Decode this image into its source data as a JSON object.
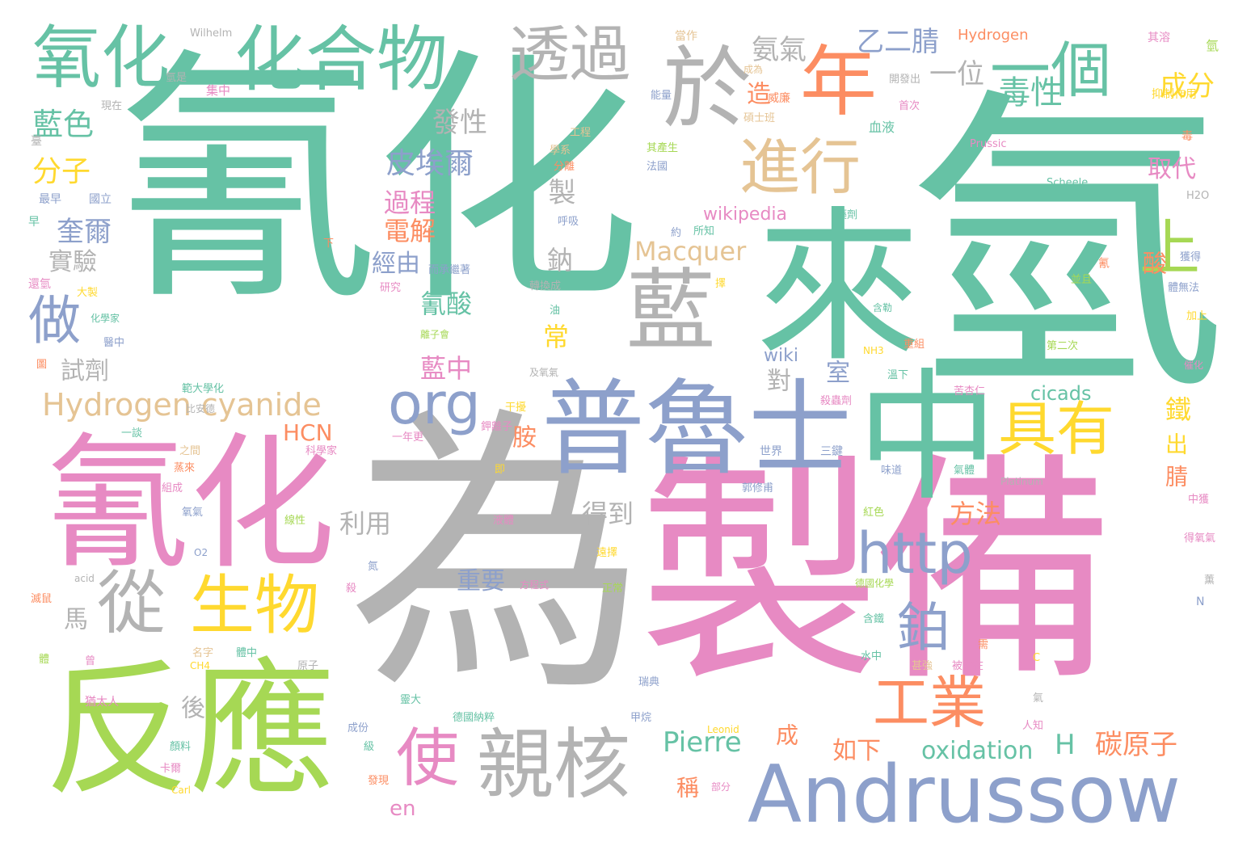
{
  "palette": {
    "green": "#66c2a5",
    "orange": "#fc8d62",
    "blue": "#8da0cb",
    "pink": "#e78ac3",
    "lime": "#a6d854",
    "yellow": "#ffd92f",
    "tan": "#e5c494",
    "gray": "#b3b3b3"
  },
  "words": [
    {
      "t": "氰化",
      "c": "green"
    },
    {
      "t": "氫",
      "c": "green"
    },
    {
      "t": "為",
      "c": "gray"
    },
    {
      "t": "製備",
      "c": "pink"
    },
    {
      "t": "氰化",
      "c": "pink"
    },
    {
      "t": "反應",
      "c": "lime"
    },
    {
      "t": "來",
      "c": "green"
    },
    {
      "t": "中",
      "c": "green"
    },
    {
      "t": "普魯士",
      "c": "blue"
    },
    {
      "t": "Andrussow",
      "c": "blue"
    },
    {
      "t": "氧化",
      "c": "green"
    },
    {
      "t": "化合物",
      "c": "green"
    },
    {
      "t": "於",
      "c": "gray"
    },
    {
      "t": "藍",
      "c": "gray"
    },
    {
      "t": "年",
      "c": "orange"
    },
    {
      "t": "一個",
      "c": "green"
    },
    {
      "t": "透過",
      "c": "gray"
    },
    {
      "t": "進行",
      "c": "tan"
    },
    {
      "t": "親核",
      "c": "gray"
    },
    {
      "t": "從",
      "c": "gray"
    },
    {
      "t": "生物",
      "c": "yellow"
    },
    {
      "t": "org",
      "c": "blue"
    },
    {
      "t": "具有",
      "c": "yellow"
    },
    {
      "t": "http",
      "c": "blue"
    },
    {
      "t": "工業",
      "c": "orange"
    },
    {
      "t": "使",
      "c": "pink"
    },
    {
      "t": "做",
      "c": "blue"
    },
    {
      "t": "鉑",
      "c": "blue"
    },
    {
      "t": "Hydrogen cyanide",
      "c": "tan"
    },
    {
      "t": "藍色",
      "c": "green"
    },
    {
      "t": "分子",
      "c": "yellow"
    },
    {
      "t": "上",
      "c": "lime"
    },
    {
      "t": "毒性",
      "c": "green"
    },
    {
      "t": "乙二腈",
      "c": "blue"
    },
    {
      "t": "一位",
      "c": "gray"
    },
    {
      "t": "氨氣",
      "c": "gray"
    },
    {
      "t": "發性",
      "c": "gray"
    },
    {
      "t": "皮埃爾",
      "c": "blue"
    },
    {
      "t": "成分",
      "c": "yellow"
    },
    {
      "t": "過程",
      "c": "pink"
    },
    {
      "t": "電解",
      "c": "orange"
    },
    {
      "t": "奎爾",
      "c": "blue"
    },
    {
      "t": "實驗",
      "c": "gray"
    },
    {
      "t": "經由",
      "c": "blue"
    },
    {
      "t": "氰酸",
      "c": "green"
    },
    {
      "t": "Macquer",
      "c": "tan"
    },
    {
      "t": "藍中",
      "c": "pink"
    },
    {
      "t": "試劑",
      "c": "gray"
    },
    {
      "t": "HCN",
      "c": "orange"
    },
    {
      "t": "Pierre",
      "c": "green"
    },
    {
      "t": "oxidation",
      "c": "green"
    },
    {
      "t": "碳原子",
      "c": "orange"
    },
    {
      "t": "cicads",
      "c": "green"
    },
    {
      "t": "得到",
      "c": "gray"
    },
    {
      "t": "方法",
      "c": "orange"
    },
    {
      "t": "利用",
      "c": "gray"
    },
    {
      "t": "重要",
      "c": "blue"
    },
    {
      "t": "如下",
      "c": "orange"
    },
    {
      "t": "wikipedia",
      "c": "pink"
    },
    {
      "t": "wiki",
      "c": "blue"
    },
    {
      "t": "取代",
      "c": "pink"
    },
    {
      "t": "Hydrogen",
      "c": "orange"
    },
    {
      "t": "製",
      "c": "gray"
    },
    {
      "t": "鈉",
      "c": "gray"
    },
    {
      "t": "常",
      "c": "yellow"
    },
    {
      "t": "造",
      "c": "orange"
    },
    {
      "t": "室",
      "c": "blue"
    },
    {
      "t": "對",
      "c": "gray"
    },
    {
      "t": "鐵",
      "c": "yellow"
    },
    {
      "t": "出",
      "c": "yellow"
    },
    {
      "t": "腈",
      "c": "orange"
    },
    {
      "t": "胺",
      "c": "orange"
    },
    {
      "t": "酸",
      "c": "orange"
    },
    {
      "t": "馬",
      "c": "gray"
    },
    {
      "t": "後",
      "c": "gray"
    },
    {
      "t": "成",
      "c": "orange"
    },
    {
      "t": "稱",
      "c": "orange"
    },
    {
      "t": "H",
      "c": "green"
    },
    {
      "t": "en",
      "c": "pink"
    },
    {
      "t": "Wilhelm",
      "c": "gray"
    },
    {
      "t": "當作",
      "c": "tan"
    },
    {
      "t": "其溶",
      "c": "pink"
    },
    {
      "t": "氫",
      "c": "lime"
    },
    {
      "t": "成為",
      "c": "tan"
    },
    {
      "t": "氫是",
      "c": "gray"
    },
    {
      "t": "集中",
      "c": "pink"
    },
    {
      "t": "開發出",
      "c": "gray"
    },
    {
      "t": "能量",
      "c": "blue"
    },
    {
      "t": "威廉",
      "c": "orange"
    },
    {
      "t": "首次",
      "c": "pink"
    },
    {
      "t": "抑制作用",
      "c": "yellow"
    },
    {
      "t": "現在",
      "c": "gray"
    },
    {
      "t": "碩士班",
      "c": "tan"
    },
    {
      "t": "血液",
      "c": "green"
    },
    {
      "t": "臺",
      "c": "gray"
    },
    {
      "t": "工程",
      "c": "tan"
    },
    {
      "t": "學系",
      "c": "tan"
    },
    {
      "t": "其產生",
      "c": "lime"
    },
    {
      "t": "Prussic",
      "c": "pink"
    },
    {
      "t": "毒",
      "c": "orange"
    },
    {
      "t": "分離",
      "c": "orange"
    },
    {
      "t": "法國",
      "c": "blue"
    },
    {
      "t": "Scheele",
      "c": "green"
    },
    {
      "t": "最早",
      "c": "blue"
    },
    {
      "t": "國立",
      "c": "blue"
    },
    {
      "t": "H2O",
      "c": "gray"
    },
    {
      "t": "早",
      "c": "green"
    },
    {
      "t": "呼吸",
      "c": "blue"
    },
    {
      "t": "藥劑",
      "c": "green"
    },
    {
      "t": "下",
      "c": "orange"
    },
    {
      "t": "約",
      "c": "blue"
    },
    {
      "t": "所知",
      "c": "green"
    },
    {
      "t": "獲得",
      "c": "blue"
    },
    {
      "t": "而承繼著",
      "c": "blue"
    },
    {
      "t": "氰",
      "c": "orange"
    },
    {
      "t": "還氫",
      "c": "pink"
    },
    {
      "t": "大製",
      "c": "yellow"
    },
    {
      "t": "研究",
      "c": "pink"
    },
    {
      "t": "轉換成",
      "c": "gray"
    },
    {
      "t": "擇",
      "c": "yellow"
    },
    {
      "t": "並且",
      "c": "lime"
    },
    {
      "t": "體無法",
      "c": "blue"
    },
    {
      "t": "化學家",
      "c": "green"
    },
    {
      "t": "油",
      "c": "green"
    },
    {
      "t": "含勒",
      "c": "green"
    },
    {
      "t": "加上",
      "c": "yellow"
    },
    {
      "t": "醫中",
      "c": "blue"
    },
    {
      "t": "離子會",
      "c": "lime"
    },
    {
      "t": "圖",
      "c": "orange"
    },
    {
      "t": "及氧氣",
      "c": "gray"
    },
    {
      "t": "NH3",
      "c": "yellow"
    },
    {
      "t": "重組",
      "c": "orange"
    },
    {
      "t": "第二次",
      "c": "lime"
    },
    {
      "t": "催化",
      "c": "pink"
    },
    {
      "t": "範大學化",
      "c": "green"
    },
    {
      "t": "溫下",
      "c": "green"
    },
    {
      "t": "苦杏仁",
      "c": "pink"
    },
    {
      "t": "比安德",
      "c": "gray"
    },
    {
      "t": "干擾",
      "c": "yellow"
    },
    {
      "t": "殺蟲劑",
      "c": "pink"
    },
    {
      "t": "一談",
      "c": "green"
    },
    {
      "t": "鉀離子",
      "c": "pink"
    },
    {
      "t": "一年更",
      "c": "pink"
    },
    {
      "t": "之間",
      "c": "tan"
    },
    {
      "t": "世界",
      "c": "blue"
    },
    {
      "t": "三鍵",
      "c": "blue"
    },
    {
      "t": "科學家",
      "c": "pink"
    },
    {
      "t": "蒸來",
      "c": "orange"
    },
    {
      "t": "即",
      "c": "yellow"
    },
    {
      "t": "味道",
      "c": "blue"
    },
    {
      "t": "氣體",
      "c": "green"
    },
    {
      "t": "組成",
      "c": "pink"
    },
    {
      "t": "郭修甫",
      "c": "blue"
    },
    {
      "t": "Platinum",
      "c": "gray"
    },
    {
      "t": "紅色",
      "c": "lime"
    },
    {
      "t": "中獲",
      "c": "pink"
    },
    {
      "t": "氧氣",
      "c": "blue"
    },
    {
      "t": "線性",
      "c": "lime"
    },
    {
      "t": "液體",
      "c": "pink"
    },
    {
      "t": "得氧氣",
      "c": "pink"
    },
    {
      "t": "O2",
      "c": "blue"
    },
    {
      "t": "遠擇",
      "c": "yellow"
    },
    {
      "t": "acid",
      "c": "gray"
    },
    {
      "t": "氮",
      "c": "blue"
    },
    {
      "t": "方程式",
      "c": "pink"
    },
    {
      "t": "正常",
      "c": "lime"
    },
    {
      "t": "德國化學",
      "c": "lime"
    },
    {
      "t": "薰",
      "c": "gray"
    },
    {
      "t": "滅鼠",
      "c": "orange"
    },
    {
      "t": "殺",
      "c": "pink"
    },
    {
      "t": "含鐵",
      "c": "green"
    },
    {
      "t": "N",
      "c": "blue"
    },
    {
      "t": "名字",
      "c": "tan"
    },
    {
      "t": "曾",
      "c": "pink"
    },
    {
      "t": "體中",
      "c": "green"
    },
    {
      "t": "原子",
      "c": "gray"
    },
    {
      "t": "水中",
      "c": "green"
    },
    {
      "t": "需",
      "c": "orange"
    },
    {
      "t": "體",
      "c": "lime"
    },
    {
      "t": "CH4",
      "c": "yellow"
    },
    {
      "t": "瑞典",
      "c": "blue"
    },
    {
      "t": "甚強",
      "c": "tan"
    },
    {
      "t": "被於在",
      "c": "pink"
    },
    {
      "t": "C",
      "c": "yellow"
    },
    {
      "t": "猶太人",
      "c": "pink"
    },
    {
      "t": "靈大",
      "c": "green"
    },
    {
      "t": "氣",
      "c": "gray"
    },
    {
      "t": "德國納粹",
      "c": "green"
    },
    {
      "t": "甲烷",
      "c": "blue"
    },
    {
      "t": "人知",
      "c": "pink"
    },
    {
      "t": "成份",
      "c": "blue"
    },
    {
      "t": "Leonid",
      "c": "yellow"
    },
    {
      "t": "顏料",
      "c": "green"
    },
    {
      "t": "級",
      "c": "green"
    },
    {
      "t": "卡爾",
      "c": "pink"
    },
    {
      "t": "部分",
      "c": "pink"
    },
    {
      "t": "發現",
      "c": "orange"
    },
    {
      "t": "Carl",
      "c": "yellow"
    }
  ]
}
